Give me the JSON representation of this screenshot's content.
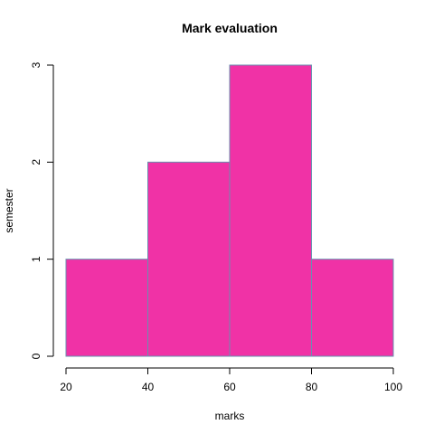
{
  "chart_data": {
    "type": "bar",
    "title": "Mark evaluation",
    "xlabel": "marks",
    "ylabel": "semester",
    "bins": [
      {
        "start": 20,
        "end": 40,
        "count": 1
      },
      {
        "start": 40,
        "end": 60,
        "count": 2
      },
      {
        "start": 60,
        "end": 80,
        "count": 3
      },
      {
        "start": 80,
        "end": 100,
        "count": 1
      }
    ],
    "xlim": [
      20,
      100
    ],
    "ylim": [
      0,
      3
    ],
    "x_ticks": [
      "20",
      "40",
      "60",
      "80",
      "100"
    ],
    "y_ticks": [
      "0",
      "1",
      "2",
      "3"
    ],
    "fill_color": "#f032a6",
    "border_color": "#6a8fb0",
    "grid": false
  }
}
